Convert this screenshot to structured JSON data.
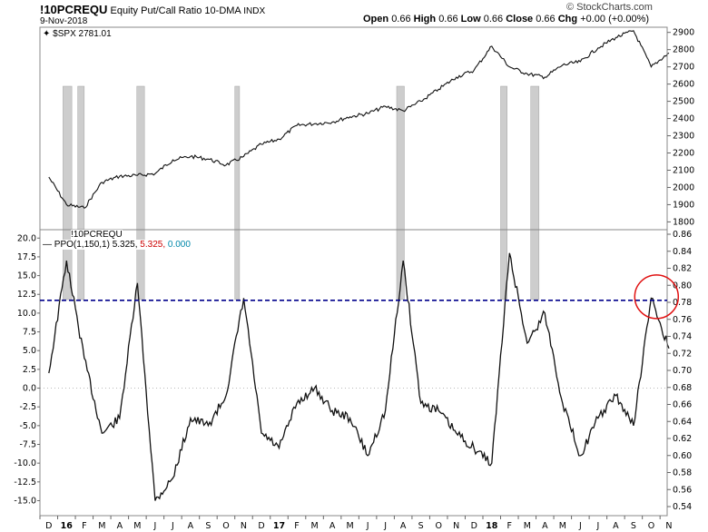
{
  "header": {
    "symbol": "!10PCREQU",
    "description": "Equity Put/Call Ratio 10-DMA",
    "exchange": "INDX",
    "date": "9-Nov-2018",
    "watermark": "© StockCharts.com",
    "open_label": "Open",
    "open": "0.66",
    "high_label": "High",
    "high": "0.66",
    "low_label": "Low",
    "low": "0.66",
    "close_label": "Close",
    "close": "0.66",
    "chg_label": "Chg",
    "chg": "+0.00 (+0.00%)"
  },
  "top_panel": {
    "legend": "$SPX 2781.01",
    "ticks": [
      "2900",
      "2800",
      "2700",
      "2600",
      "2500",
      "2400",
      "2300",
      "2200",
      "2100",
      "2000",
      "1900",
      "1800"
    ]
  },
  "bottom_panel": {
    "symbol_label": "!10PCREQU",
    "ppo_label": "PPO(1,150,1) 5.325,",
    "ppo_val1": "5.325,",
    "ppo_val2": "0.000",
    "left_ticks": [
      "20.0",
      "17.5",
      "15.0",
      "12.5",
      "10.0",
      "7.5",
      "5.0",
      "2.5",
      "0.0",
      "-2.5",
      "-5.0",
      "-7.5",
      "-10.0",
      "-12.5",
      "-15.0"
    ],
    "right_ticks": [
      "0.86",
      "0.84",
      "0.82",
      "0.80",
      "0.78",
      "0.76",
      "0.74",
      "0.72",
      "0.70",
      "0.68",
      "0.66",
      "0.64",
      "0.62",
      "0.60",
      "0.58",
      "0.56",
      "0.54"
    ]
  },
  "x_labels": [
    "D",
    "16",
    "F",
    "M",
    "A",
    "M",
    "J",
    "J",
    "A",
    "S",
    "O",
    "N",
    "D",
    "17",
    "F",
    "M",
    "A",
    "M",
    "J",
    "J",
    "A",
    "S",
    "O",
    "N",
    "D",
    "18",
    "F",
    "M",
    "A",
    "M",
    "J",
    "J",
    "A",
    "S",
    "O",
    "N"
  ],
  "colors": {
    "line": "#111111",
    "threshold": "#00008b",
    "circle": "#e01010",
    "shade": "#c8c8c8",
    "ppo_red": "#cc0000",
    "ppo_teal": "#0088aa"
  },
  "chart_data": [
    {
      "type": "line",
      "title": "$SPX 2781.01",
      "ylim": [
        1800,
        2900
      ],
      "x": [
        "2015-12",
        "2016-01",
        "2016-02",
        "2016-03",
        "2016-04",
        "2016-05",
        "2016-06",
        "2016-07",
        "2016-08",
        "2016-09",
        "2016-10",
        "2016-11",
        "2016-12",
        "2017-01",
        "2017-02",
        "2017-03",
        "2017-04",
        "2017-05",
        "2017-06",
        "2017-07",
        "2017-08",
        "2017-09",
        "2017-10",
        "2017-11",
        "2017-12",
        "2018-01",
        "2018-02",
        "2018-03",
        "2018-04",
        "2018-05",
        "2018-06",
        "2018-07",
        "2018-08",
        "2018-09",
        "2018-10",
        "2018-11"
      ],
      "series": [
        {
          "name": "$SPX",
          "values": [
            2060,
            1900,
            1880,
            2030,
            2065,
            2070,
            2080,
            2160,
            2180,
            2165,
            2130,
            2180,
            2250,
            2280,
            2360,
            2370,
            2380,
            2410,
            2430,
            2470,
            2445,
            2500,
            2570,
            2640,
            2680,
            2820,
            2700,
            2660,
            2640,
            2710,
            2730,
            2810,
            2870,
            2910,
            2700,
            2781
          ]
        }
      ]
    },
    {
      "type": "line",
      "title": "PPO(1,150,1) 5.325",
      "ylim": [
        -17,
        21
      ],
      "x": [
        "2015-12",
        "2016-01",
        "2016-02",
        "2016-03",
        "2016-04",
        "2016-05",
        "2016-06",
        "2016-07",
        "2016-08",
        "2016-09",
        "2016-10",
        "2016-11",
        "2016-12",
        "2017-01",
        "2017-02",
        "2017-03",
        "2017-04",
        "2017-05",
        "2017-06",
        "2017-07",
        "2017-08",
        "2017-09",
        "2017-10",
        "2017-11",
        "2017-12",
        "2018-01",
        "2018-02",
        "2018-03",
        "2018-04",
        "2018-05",
        "2018-06",
        "2018-07",
        "2018-08",
        "2018-09",
        "2018-10",
        "2018-11"
      ],
      "series": [
        {
          "name": "PPO",
          "values": [
            2,
            17,
            4,
            -6,
            -4,
            14,
            -15,
            -12,
            -4,
            -5,
            -1,
            12,
            -6,
            -8,
            -2,
            0,
            -3,
            -4,
            -9,
            -3,
            17,
            -2,
            -3,
            -6,
            -8,
            -10,
            18,
            6,
            10,
            -2,
            -9,
            -4,
            -1,
            -5,
            12,
            5.3
          ]
        }
      ],
      "threshold": 11.7,
      "highlight_windows": [
        [
          "2016-01-10",
          "2016-01-25"
        ],
        [
          "2016-02-05",
          "2016-02-16"
        ],
        [
          "2016-05-15",
          "2016-05-28"
        ],
        [
          "2016-11-01",
          "2016-11-09"
        ],
        [
          "2017-08-05",
          "2017-08-18"
        ],
        [
          "2018-02-01",
          "2018-02-12"
        ],
        [
          "2018-03-22",
          "2018-04-06"
        ]
      ]
    }
  ]
}
